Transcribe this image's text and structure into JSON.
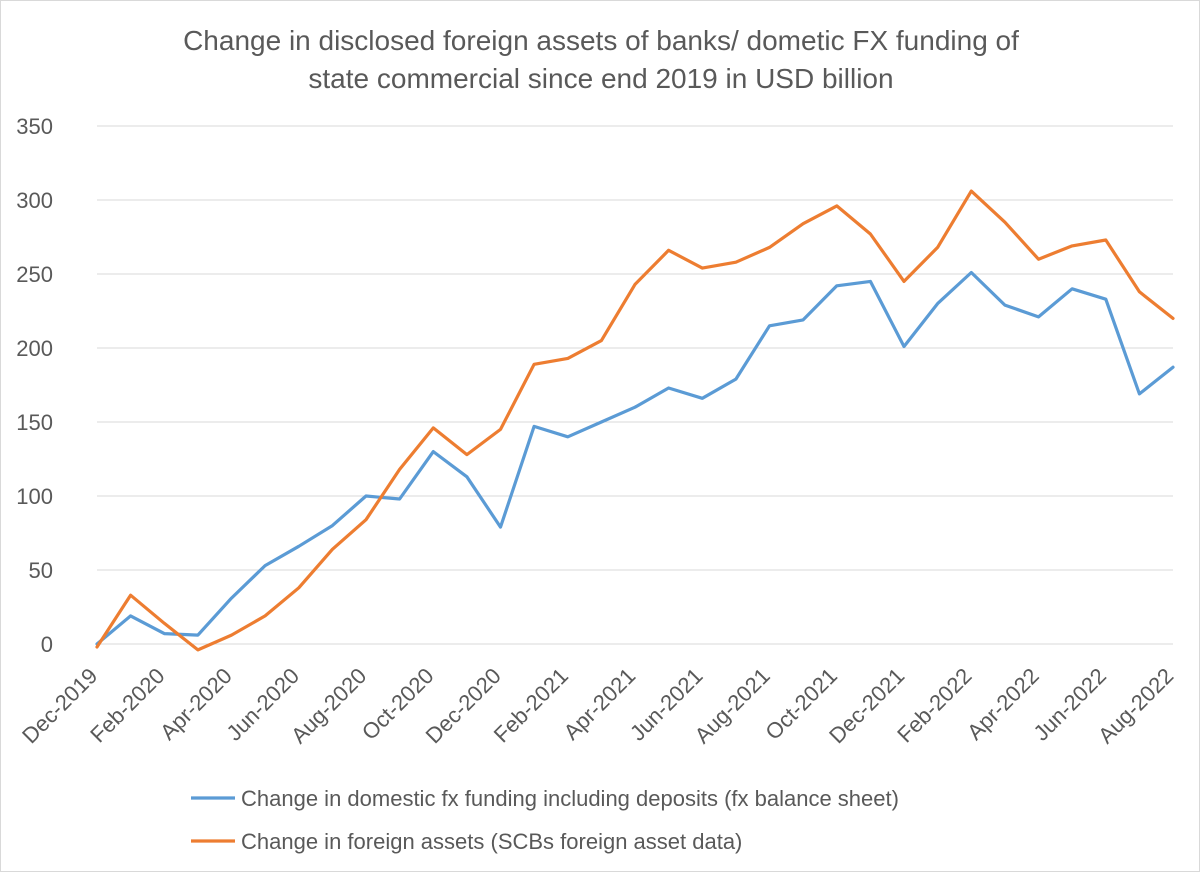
{
  "chart_data": {
    "type": "line",
    "title_lines": [
      "Change in disclosed foreign assets of banks/ dometic FX funding of",
      "state commercial since end 2019 in USD billion"
    ],
    "xlabel": "",
    "ylabel": "",
    "ylim": [
      0,
      350
    ],
    "yticks": [
      "0",
      "50",
      "100",
      "150",
      "200",
      "250",
      "300",
      "350"
    ],
    "grid": true,
    "legend_position": "bottom",
    "categories": [
      "Dec-2019",
      "Jan-2020",
      "Feb-2020",
      "Mar-2020",
      "Apr-2020",
      "May-2020",
      "Jun-2020",
      "Jul-2020",
      "Aug-2020",
      "Sep-2020",
      "Oct-2020",
      "Nov-2020",
      "Dec-2020",
      "Jan-2021",
      "Feb-2021",
      "Mar-2021",
      "Apr-2021",
      "May-2021",
      "Jun-2021",
      "Jul-2021",
      "Aug-2021",
      "Sep-2021",
      "Oct-2021",
      "Nov-2021",
      "Dec-2021",
      "Jan-2022",
      "Feb-2022",
      "Mar-2022",
      "Apr-2022",
      "May-2022",
      "Jun-2022",
      "Jul-2022",
      "Aug-2022"
    ],
    "tick_labels": [
      "Dec-2019",
      "",
      "Feb-2020",
      "",
      "Apr-2020",
      "",
      "Jun-2020",
      "",
      "Aug-2020",
      "",
      "Oct-2020",
      "",
      "Dec-2020",
      "",
      "Feb-2021",
      "",
      "Apr-2021",
      "",
      "Jun-2021",
      "",
      "Aug-2021",
      "",
      "Oct-2021",
      "",
      "Dec-2021",
      "",
      "Feb-2022",
      "",
      "Apr-2022",
      "",
      "Jun-2022",
      "",
      "Aug-2022"
    ],
    "series": [
      {
        "name": "Change in domestic fx funding including deposits (fx balance sheet)",
        "color": "#5b9bd5",
        "values": [
          0,
          19,
          7,
          6,
          31,
          53,
          66,
          80,
          100,
          98,
          130,
          113,
          79,
          147,
          140,
          150,
          160,
          173,
          166,
          179,
          215,
          219,
          242,
          245,
          201,
          230,
          251,
          229,
          221,
          240,
          233,
          169,
          187
        ]
      },
      {
        "name": "Change in foreign assets (SCBs foreign asset data)",
        "color": "#ed7d31",
        "values": [
          -2,
          33,
          14,
          -4,
          6,
          19,
          38,
          64,
          84,
          118,
          146,
          128,
          145,
          189,
          193,
          205,
          243,
          266,
          254,
          258,
          268,
          284,
          296,
          277,
          245,
          268,
          306,
          285,
          260,
          269,
          273,
          238,
          220
        ]
      }
    ]
  }
}
